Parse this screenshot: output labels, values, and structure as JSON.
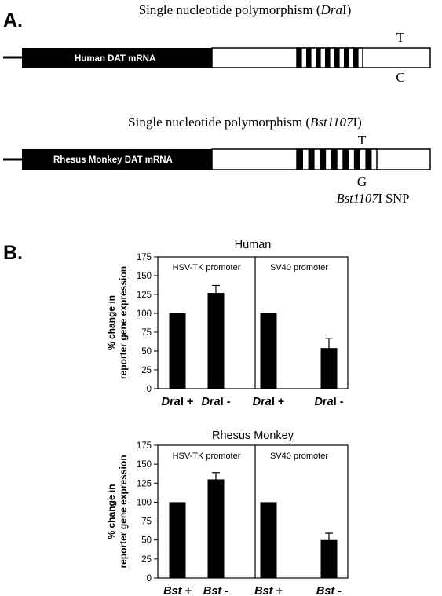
{
  "panel_a": {
    "label": "A.",
    "human": {
      "title_prefix": "Single nucleotide polymorphism (",
      "title_italic": "Dra",
      "title_suffix": "I)",
      "bar_label": "Human DAT mRNA",
      "allele_top": "T",
      "allele_bottom": "C"
    },
    "monkey": {
      "title_prefix": "Single nucleotide polymorphism (",
      "title_italic": "Bst1107",
      "title_suffix": "I)",
      "bar_label": "Rhesus Monkey DAT mRNA",
      "allele_top": "T",
      "allele_bottom": "G",
      "snp_italic": "Bst1107",
      "snp_suffix": "I SNP"
    }
  },
  "panel_b": {
    "label": "B."
  },
  "chart_data": [
    {
      "type": "bar",
      "title": "Human",
      "ylabel_line1": "% change in",
      "ylabel_line2": "reporter gene expression",
      "ylim": [
        0,
        175
      ],
      "yticks": [
        0,
        25,
        50,
        75,
        100,
        125,
        150,
        175
      ],
      "panels": [
        {
          "name": "HSV-TK promoter",
          "bars": [
            {
              "label_bold": "Dra",
              "label_rest": "I +",
              "value": 100,
              "error": 0
            },
            {
              "label_bold": "Dra",
              "label_rest": "I -",
              "value": 127,
              "error": 10
            }
          ]
        },
        {
          "name": "SV40 promoter",
          "bars": [
            {
              "label_bold": "Dra",
              "label_rest": "I +",
              "value": 100,
              "error": 0
            },
            {
              "label_bold": "Dra",
              "label_rest": "I -",
              "value": 54,
              "error": 13
            }
          ]
        }
      ]
    },
    {
      "type": "bar",
      "title": "Rhesus Monkey",
      "ylabel_line1": "% change in",
      "ylabel_line2": "reporter gene expression",
      "ylim": [
        0,
        175
      ],
      "yticks": [
        0,
        25,
        50,
        75,
        100,
        125,
        150,
        175
      ],
      "panels": [
        {
          "name": "HSV-TK promoter",
          "bars": [
            {
              "label_bold": "Bst",
              "label_rest": " +",
              "value": 100,
              "error": 0
            },
            {
              "label_bold": "Bst",
              "label_rest": " -",
              "value": 130,
              "error": 9
            }
          ]
        },
        {
          "name": "SV40 promoter",
          "bars": [
            {
              "label_bold": "Bst",
              "label_rest": " +",
              "value": 100,
              "error": 0
            },
            {
              "label_bold": "Bst",
              "label_rest": " -",
              "value": 50,
              "error": 9
            }
          ]
        }
      ]
    }
  ]
}
